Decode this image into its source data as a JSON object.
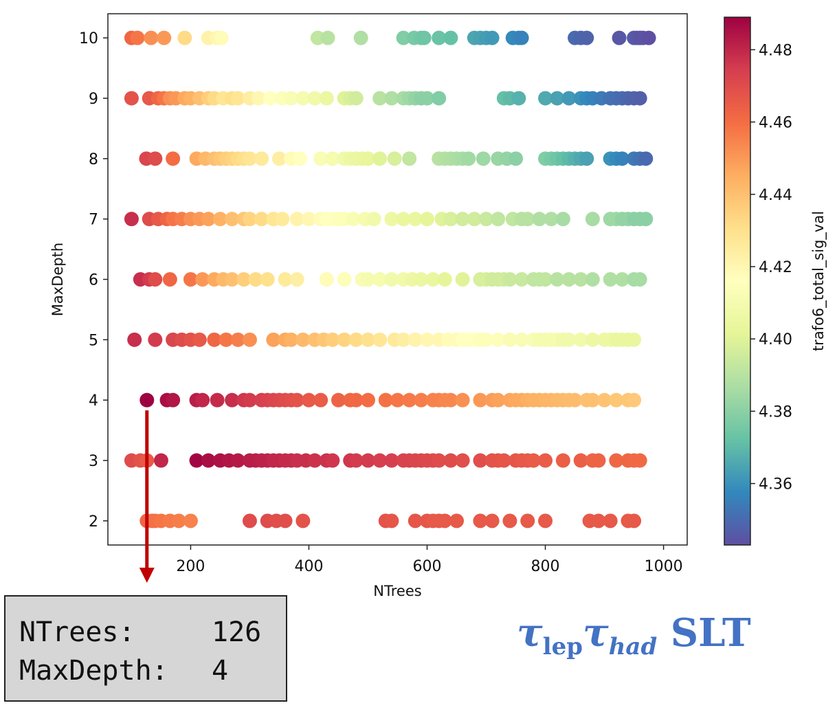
{
  "chart_data": {
    "type": "scatter",
    "xlabel": "NTrees",
    "ylabel": "MaxDepth",
    "colorbar_label": "trafo6_total_sig_val",
    "xlim": [
      60,
      1040
    ],
    "ylim": [
      1.6,
      10.4
    ],
    "xticks": [
      200,
      400,
      600,
      800,
      1000
    ],
    "yticks": [
      2,
      3,
      4,
      5,
      6,
      7,
      8,
      9,
      10
    ],
    "colorbar_ticks": [
      "4.36",
      "4.38",
      "4.40",
      "4.42",
      "4.44",
      "4.46",
      "4.48"
    ],
    "color_range": [
      4.343,
      4.489
    ],
    "colormap": "Spectral",
    "colormap_stops": [
      "#5e4fa2",
      "#3288bd",
      "#66c2a5",
      "#abdda4",
      "#e6f598",
      "#ffffbf",
      "#fee08b",
      "#fdae61",
      "#f46d43",
      "#d53e4f",
      "#9e0142"
    ],
    "points": [
      {
        "y": 10,
        "x": [
          100,
          110,
          133,
          155,
          190,
          230,
          245,
          252
        ],
        "c": [
          4.462,
          4.458,
          4.452,
          4.45,
          4.432,
          4.422,
          4.42,
          4.418
        ]
      },
      {
        "y": 10,
        "x": [
          415,
          432,
          488,
          560,
          578,
          590,
          595,
          620,
          640,
          680,
          690,
          700,
          710,
          745,
          755,
          760,
          850,
          860,
          870,
          925,
          950,
          955,
          960,
          965,
          975
        ],
        "c": [
          4.392,
          4.39,
          4.388,
          4.378,
          4.376,
          4.375,
          4.374,
          4.373,
          4.372,
          4.365,
          4.364,
          4.363,
          4.362,
          4.358,
          4.357,
          4.356,
          4.35,
          4.349,
          4.348,
          4.345,
          4.346,
          4.345,
          4.344,
          4.344,
          4.343
        ]
      },
      {
        "y": 9,
        "x": [
          100,
          130,
          145,
          155,
          165,
          175,
          190,
          200,
          215,
          230,
          240,
          255,
          270,
          280,
          300,
          315,
          335,
          355,
          370,
          390,
          410,
          430,
          460,
          470,
          480,
          520,
          540,
          560,
          570,
          580,
          590,
          600,
          620
        ],
        "c": [
          4.468,
          4.466,
          4.462,
          4.458,
          4.452,
          4.45,
          4.446,
          4.444,
          4.44,
          4.436,
          4.432,
          4.428,
          4.43,
          4.428,
          4.424,
          4.42,
          4.416,
          4.414,
          4.412,
          4.41,
          4.408,
          4.405,
          4.4,
          4.398,
          4.396,
          4.39,
          4.388,
          4.386,
          4.384,
          4.382,
          4.38,
          4.38,
          4.378
        ]
      },
      {
        "y": 9,
        "x": [
          730,
          740,
          755,
          800,
          820,
          840,
          860,
          870,
          880,
          895,
          910,
          920,
          930,
          940,
          950,
          960
        ],
        "c": [
          4.372,
          4.37,
          4.368,
          4.366,
          4.364,
          4.362,
          4.36,
          4.358,
          4.356,
          4.354,
          4.352,
          4.351,
          4.35,
          4.349,
          4.348,
          4.347
        ]
      },
      {
        "y": 8,
        "x": [
          125,
          140,
          170,
          210,
          225,
          240,
          250,
          260,
          270,
          280,
          290,
          300,
          320,
          350,
          370,
          385,
          420,
          440,
          460,
          470,
          480,
          490,
          500,
          520,
          545,
          570,
          620,
          630,
          640,
          650,
          660,
          670,
          695,
          720,
          735,
          750,
          800,
          810,
          820,
          830,
          840,
          850,
          860,
          870,
          910,
          920,
          930,
          950,
          960,
          970
        ],
        "c": [
          4.472,
          4.47,
          4.46,
          4.446,
          4.442,
          4.44,
          4.438,
          4.436,
          4.434,
          4.432,
          4.43,
          4.428,
          4.426,
          4.424,
          4.418,
          4.416,
          4.412,
          4.41,
          4.408,
          4.406,
          4.405,
          4.404,
          4.403,
          4.4,
          4.398,
          4.392,
          4.39,
          4.389,
          4.388,
          4.387,
          4.386,
          4.385,
          4.384,
          4.383,
          4.382,
          4.38,
          4.378,
          4.376,
          4.374,
          4.372,
          4.37,
          4.368,
          4.366,
          4.364,
          4.36,
          4.358,
          4.356,
          4.354,
          4.352,
          4.35
        ]
      },
      {
        "y": 7,
        "x": [
          100,
          130,
          145,
          160,
          170,
          185,
          200,
          215,
          230,
          250,
          270,
          290,
          300,
          320,
          340,
          355,
          380,
          400,
          420,
          430,
          440,
          450,
          460,
          475,
          495,
          510,
          540,
          560,
          580,
          600,
          625,
          640,
          660,
          680,
          700,
          720,
          745,
          760,
          770,
          790,
          810,
          830,
          880,
          910,
          920,
          930,
          940,
          950,
          960,
          970
        ],
        "c": [
          4.478,
          4.47,
          4.466,
          4.462,
          4.458,
          4.456,
          4.452,
          4.45,
          4.448,
          4.444,
          4.44,
          4.438,
          4.434,
          4.432,
          4.428,
          4.426,
          4.422,
          4.42,
          4.418,
          4.416,
          4.416,
          4.414,
          4.414,
          4.412,
          4.41,
          4.408,
          4.406,
          4.404,
          4.404,
          4.402,
          4.4,
          4.398,
          4.396,
          4.396,
          4.394,
          4.392,
          4.392,
          4.39,
          4.39,
          4.388,
          4.388,
          4.386,
          4.386,
          4.384,
          4.384,
          4.382,
          4.382,
          4.38,
          4.38,
          4.38
        ]
      },
      {
        "y": 6,
        "x": [
          115,
          130,
          140,
          165,
          200,
          220,
          240,
          255,
          270,
          290,
          310,
          330,
          360,
          380,
          430,
          460,
          490,
          500,
          520,
          540,
          560,
          575,
          590,
          610,
          630,
          660,
          690,
          700,
          710,
          720,
          730,
          740,
          760,
          780,
          790,
          800,
          820,
          840,
          860,
          880,
          910,
          930,
          950,
          960
        ],
        "c": [
          4.478,
          4.475,
          4.47,
          4.462,
          4.458,
          4.45,
          4.446,
          4.442,
          4.44,
          4.436,
          4.432,
          4.43,
          4.426,
          4.424,
          4.418,
          4.414,
          4.412,
          4.41,
          4.41,
          4.408,
          4.408,
          4.406,
          4.405,
          4.404,
          4.402,
          4.4,
          4.398,
          4.398,
          4.396,
          4.396,
          4.396,
          4.394,
          4.394,
          4.392,
          4.392,
          4.392,
          4.39,
          4.39,
          4.39,
          4.388,
          4.388,
          4.388,
          4.386,
          4.386
        ]
      },
      {
        "y": 5,
        "x": [
          105,
          140,
          170,
          185,
          200,
          215,
          240,
          260,
          280,
          300,
          340,
          360,
          370,
          390,
          410,
          425,
          440,
          460,
          480,
          500,
          520,
          545,
          560,
          580,
          600,
          620,
          635,
          650,
          660,
          670,
          680,
          690,
          700,
          720,
          740,
          760,
          780,
          790,
          800,
          810,
          820,
          830,
          840,
          860,
          880,
          900,
          910,
          920,
          930,
          940,
          950
        ],
        "c": [
          4.478,
          4.475,
          4.472,
          4.47,
          4.468,
          4.466,
          4.462,
          4.458,
          4.456,
          4.452,
          4.448,
          4.446,
          4.444,
          4.442,
          4.44,
          4.438,
          4.436,
          4.434,
          4.432,
          4.43,
          4.428,
          4.426,
          4.424,
          4.422,
          4.42,
          4.42,
          4.418,
          4.418,
          4.416,
          4.416,
          4.416,
          4.414,
          4.414,
          4.414,
          4.412,
          4.412,
          4.412,
          4.41,
          4.41,
          4.41,
          4.41,
          4.408,
          4.408,
          4.408,
          4.406,
          4.406,
          4.406,
          4.404,
          4.404,
          4.404,
          4.404
        ]
      },
      {
        "y": 4,
        "x": [
          126,
          160,
          170,
          210,
          220,
          245,
          270,
          290,
          300,
          320,
          330,
          340,
          350,
          360,
          370,
          380,
          400,
          420,
          450,
          470,
          480,
          500,
          530,
          550,
          570,
          590,
          610,
          620,
          630,
          640,
          660,
          690,
          710,
          720,
          740,
          750,
          760,
          770,
          780,
          790,
          800,
          810,
          820,
          830,
          840,
          850,
          870,
          880,
          900,
          920,
          940,
          950
        ],
        "c": [
          4.489,
          4.486,
          4.484,
          4.482,
          4.48,
          4.479,
          4.478,
          4.476,
          4.475,
          4.474,
          4.473,
          4.472,
          4.471,
          4.47,
          4.469,
          4.468,
          4.466,
          4.465,
          4.463,
          4.462,
          4.461,
          4.46,
          4.459,
          4.458,
          4.457,
          4.456,
          4.455,
          4.455,
          4.454,
          4.454,
          4.452,
          4.45,
          4.449,
          4.448,
          4.447,
          4.446,
          4.446,
          4.445,
          4.444,
          4.444,
          4.443,
          4.443,
          4.442,
          4.442,
          4.441,
          4.441,
          4.44,
          4.44,
          4.439,
          4.438,
          4.438,
          4.437
        ]
      },
      {
        "y": 3,
        "x": [
          100,
          115,
          126,
          150,
          210,
          230,
          250,
          265,
          280,
          300,
          310,
          320,
          330,
          340,
          350,
          360,
          370,
          380,
          395,
          410,
          430,
          440,
          470,
          480,
          500,
          520,
          540,
          560,
          570,
          580,
          590,
          600,
          610,
          620,
          640,
          660,
          690,
          710,
          720,
          730,
          750,
          760,
          770,
          780,
          800,
          830,
          860,
          880,
          890,
          920,
          940,
          950,
          960
        ],
        "c": [
          4.47,
          4.468,
          4.466,
          4.48,
          4.488,
          4.486,
          4.485,
          4.484,
          4.483,
          4.482,
          4.482,
          4.481,
          4.481,
          4.48,
          4.48,
          4.479,
          4.479,
          4.478,
          4.478,
          4.477,
          4.477,
          4.476,
          4.476,
          4.475,
          4.475,
          4.474,
          4.474,
          4.473,
          4.473,
          4.472,
          4.472,
          4.471,
          4.471,
          4.47,
          4.47,
          4.469,
          4.469,
          4.468,
          4.468,
          4.467,
          4.467,
          4.466,
          4.466,
          4.465,
          4.465,
          4.464,
          4.464,
          4.463,
          4.463,
          4.462,
          4.462,
          4.461,
          4.461
        ]
      },
      {
        "y": 2,
        "x": [
          126,
          135,
          140,
          150,
          165,
          180,
          200,
          300,
          330,
          345,
          360,
          390,
          530,
          540,
          580,
          600,
          610,
          620,
          630,
          650,
          690,
          710,
          740,
          770,
          800,
          875,
          890,
          910,
          940,
          950
        ],
        "c": [
          4.462,
          4.46,
          4.459,
          4.458,
          4.457,
          4.456,
          4.455,
          4.47,
          4.47,
          4.469,
          4.469,
          4.468,
          4.468,
          4.467,
          4.467,
          4.467,
          4.466,
          4.466,
          4.466,
          4.466,
          4.466,
          4.466,
          4.466,
          4.466,
          4.466,
          4.466,
          4.466,
          4.466,
          4.466,
          4.466
        ]
      }
    ],
    "annotation": {
      "x": 126,
      "y": 4,
      "direction": "down"
    }
  },
  "info_box": {
    "ntrees_label": "NTrees:",
    "ntrees_value": "126",
    "maxdepth_label": "MaxDepth:",
    "maxdepth_value": "4"
  },
  "region_label": {
    "tau1": "τ",
    "sub1": "lep",
    "tau2": "τ",
    "sub2": "had",
    "suffix": " SLT"
  },
  "colors": {
    "arrow": "#c00000",
    "region_text": "#4472c4"
  }
}
